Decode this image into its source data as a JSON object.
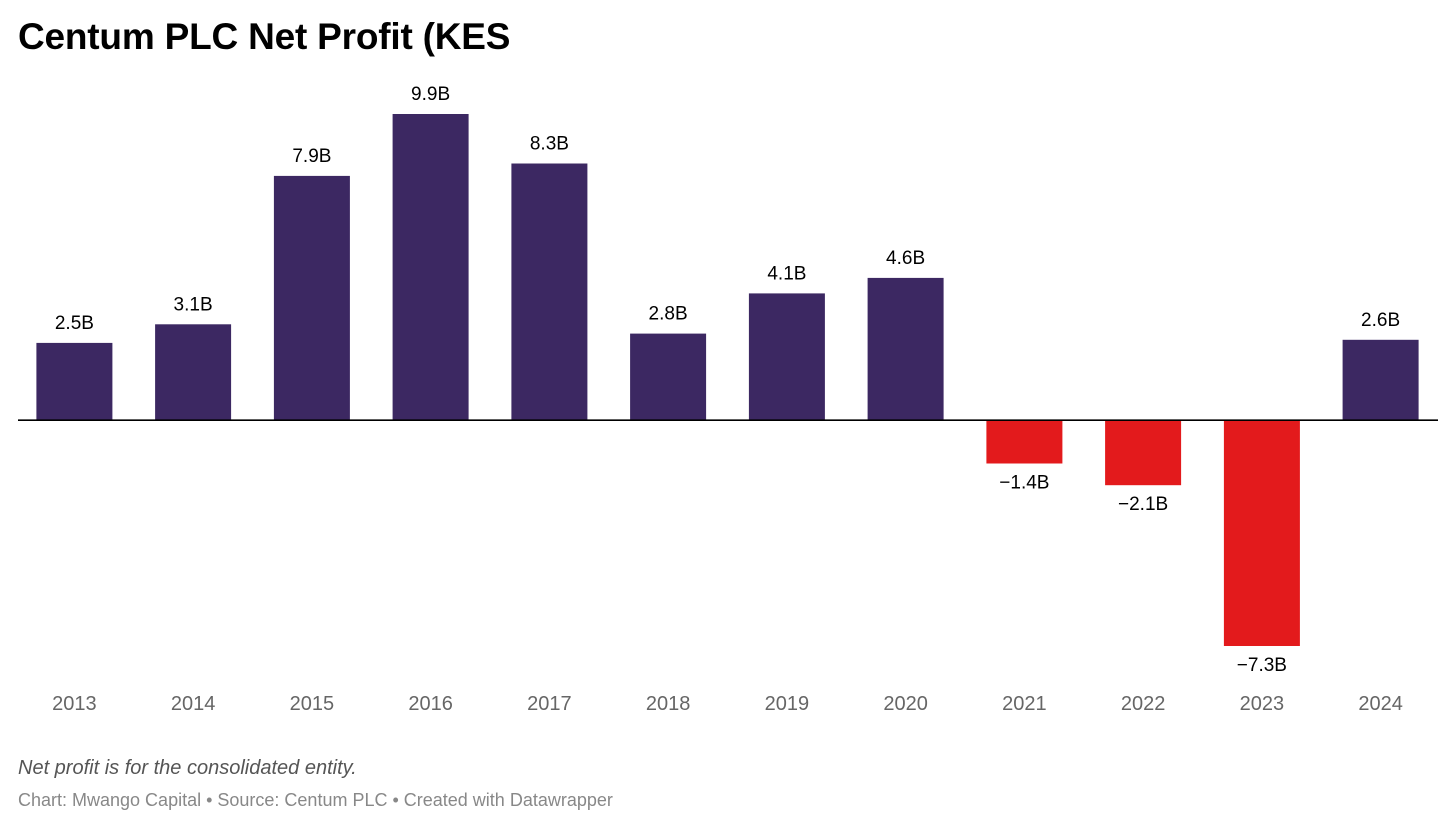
{
  "chart_data": {
    "type": "bar",
    "title": "Centum PLC Net Profit (KES",
    "categories": [
      "2013",
      "2014",
      "2015",
      "2016",
      "2017",
      "2018",
      "2019",
      "2020",
      "2021",
      "2022",
      "2023",
      "2024"
    ],
    "values": [
      2.5,
      3.1,
      7.9,
      9.9,
      8.3,
      2.8,
      4.1,
      4.6,
      -1.4,
      -2.1,
      -7.3,
      2.6
    ],
    "value_labels": [
      "2.5B",
      "3.1B",
      "7.9B",
      "9.9B",
      "8.3B",
      "2.8B",
      "4.1B",
      "4.6B",
      "−1.4B",
      "−2.1B",
      "−7.3B",
      "2.6B"
    ],
    "unit": "B",
    "xlabel": "",
    "ylabel": "",
    "ylim": [
      -7.3,
      9.9
    ],
    "grid": false,
    "legend": "none",
    "colors": {
      "positive": "#3c2862",
      "negative": "#e31a1c",
      "baseline": "#000000",
      "value_label": "#000000",
      "tick_label": "#666666"
    }
  },
  "footer": {
    "note": "Net profit is for the consolidated entity.",
    "credit": "Chart: Mwango Capital • Source: Centum PLC • Created with Datawrapper"
  }
}
